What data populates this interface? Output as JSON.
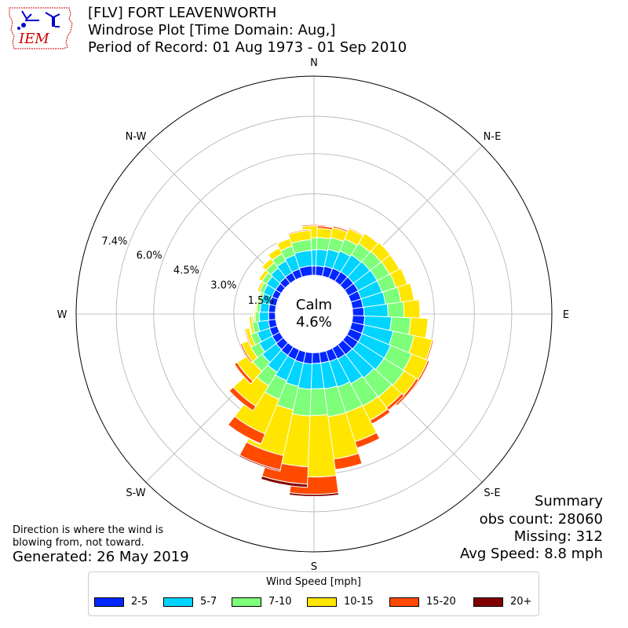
{
  "logo": {
    "text": "IEM",
    "icon": "iowa-state-outline-icon"
  },
  "title": {
    "line1": "[FLV] FORT LEAVENWORTH",
    "line2": "Windrose Plot [Time Domain: Aug,]",
    "line3": "Period of Record: 01 Aug 1973 - 01 Sep 2010"
  },
  "note": {
    "line1": "Direction is where the wind is",
    "line2": "blowing from, not toward."
  },
  "generated": "Generated: 26 May 2019",
  "summary": {
    "heading": "Summary",
    "obs_count": "obs count: 28060",
    "missing": "Missing: 312",
    "avg_speed": "Avg Speed: 8.8 mph"
  },
  "chart_data": {
    "type": "windrose",
    "calm_label": "Calm",
    "calm_value": "4.6%",
    "directions": [
      "N",
      "N-E",
      "E",
      "S-E",
      "S",
      "S-W",
      "W",
      "N-W"
    ],
    "radial_ticks": [
      "1.5%",
      "3.0%",
      "4.5%",
      "6.0%",
      "7.4%"
    ],
    "radial_tick_values": [
      1.5,
      3.0,
      4.5,
      6.0,
      7.4
    ],
    "rmax": 8.9,
    "calm_radius": 1.45,
    "grid": true,
    "legend_title": "Wind Speed [mph]",
    "bin_directions_deg": [
      0,
      10,
      20,
      30,
      40,
      50,
      60,
      70,
      80,
      90,
      100,
      110,
      120,
      130,
      140,
      150,
      160,
      170,
      180,
      190,
      200,
      210,
      220,
      230,
      240,
      250,
      260,
      270,
      280,
      290,
      300,
      310,
      320,
      330,
      340,
      350
    ],
    "series": [
      {
        "name": "2-5",
        "color": "#0027ff",
        "values": [
          0.35,
          0.35,
          0.38,
          0.4,
          0.42,
          0.42,
          0.42,
          0.4,
          0.4,
          0.42,
          0.45,
          0.48,
          0.5,
          0.5,
          0.48,
          0.45,
          0.42,
          0.4,
          0.4,
          0.42,
          0.42,
          0.4,
          0.38,
          0.35,
          0.32,
          0.3,
          0.28,
          0.25,
          0.25,
          0.25,
          0.25,
          0.25,
          0.28,
          0.3,
          0.32,
          0.35
        ]
      },
      {
        "name": "5-7",
        "color": "#00d4ff",
        "values": [
          0.6,
          0.62,
          0.65,
          0.7,
          0.75,
          0.78,
          0.8,
          0.82,
          0.85,
          0.9,
          1.0,
          1.1,
          1.15,
          1.15,
          1.1,
          1.05,
          1.0,
          0.98,
          0.95,
          0.95,
          0.9,
          0.85,
          0.75,
          0.65,
          0.55,
          0.48,
          0.4,
          0.35,
          0.32,
          0.32,
          0.35,
          0.4,
          0.45,
          0.5,
          0.55,
          0.58
        ]
      },
      {
        "name": "7-10",
        "color": "#7dff7a",
        "values": [
          0.45,
          0.45,
          0.45,
          0.48,
          0.5,
          0.52,
          0.52,
          0.55,
          0.58,
          0.6,
          0.72,
          0.8,
          0.85,
          0.88,
          0.9,
          0.95,
          1.0,
          1.05,
          1.0,
          1.0,
          0.9,
          0.75,
          0.6,
          0.45,
          0.35,
          0.25,
          0.2,
          0.15,
          0.12,
          0.1,
          0.15,
          0.2,
          0.25,
          0.3,
          0.35,
          0.4
        ]
      },
      {
        "name": "10-15",
        "color": "#ffe600",
        "values": [
          0.45,
          0.35,
          0.38,
          0.42,
          0.45,
          0.45,
          0.42,
          0.45,
          0.5,
          0.6,
          0.65,
          0.7,
          0.65,
          0.55,
          0.5,
          0.6,
          1.15,
          1.6,
          2.3,
          1.9,
          1.75,
          1.4,
          0.9,
          0.5,
          0.25,
          0.15,
          0.1,
          0.05,
          0.05,
          0.05,
          0.1,
          0.15,
          0.2,
          0.25,
          0.3,
          0.35
        ]
      },
      {
        "name": "15-20",
        "color": "#ff4a00",
        "values": [
          0.05,
          0.08,
          0.06,
          0.04,
          0.03,
          0.03,
          0.02,
          0.02,
          0.02,
          0.02,
          0.02,
          0.05,
          0.07,
          0.1,
          0.12,
          0.15,
          0.25,
          0.4,
          0.65,
          0.65,
          0.55,
          0.4,
          0.2,
          0.12,
          0.06,
          0.04,
          0.03,
          0.02,
          0.02,
          0.02,
          0.02,
          0.02,
          0.02,
          0.02,
          0.03,
          0.04
        ]
      },
      {
        "name": "20+",
        "color": "#800000",
        "values": [
          0.01,
          0,
          0,
          0,
          0,
          0,
          0,
          0,
          0,
          0,
          0,
          0,
          0,
          0,
          0,
          0,
          0,
          0.02,
          0.08,
          0.12,
          0.05,
          0.02,
          0,
          0,
          0,
          0,
          0,
          0,
          0,
          0,
          0,
          0,
          0,
          0,
          0,
          0
        ]
      }
    ]
  }
}
